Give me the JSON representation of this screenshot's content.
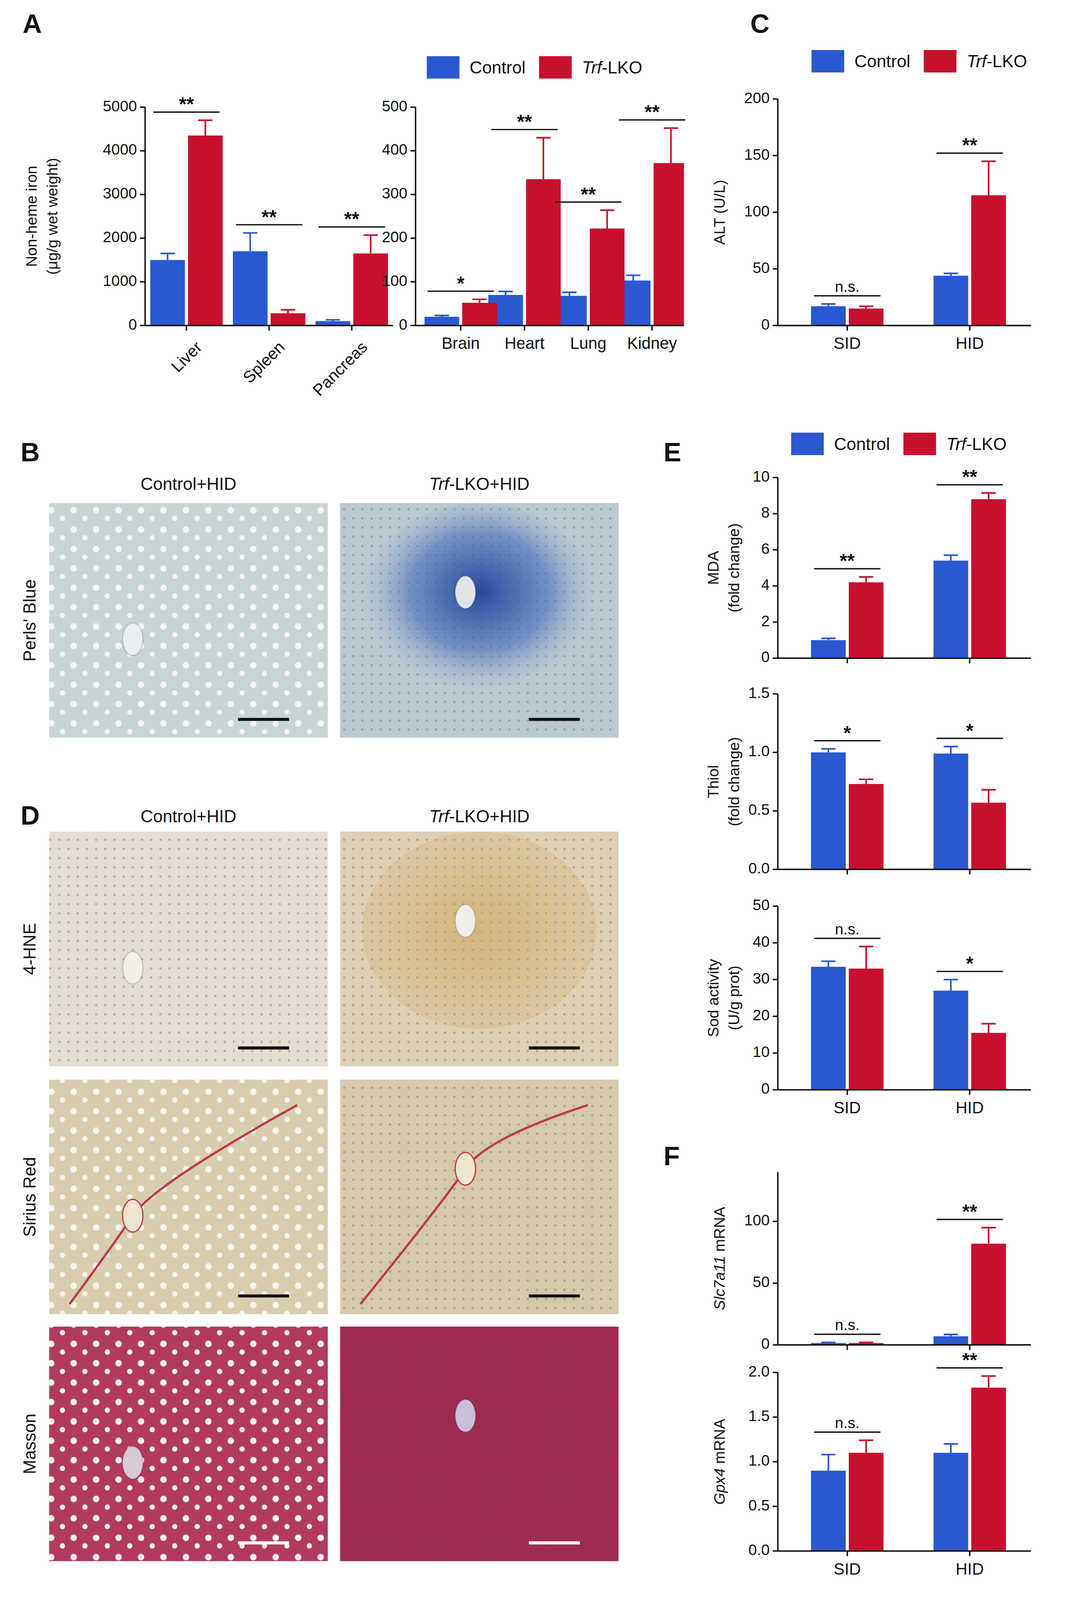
{
  "panel_labels": [
    "A",
    "C",
    "E",
    "F"
  ],
  "images": [
    {
      "panel": "B",
      "columns": [
        "Control+HID",
        "Trf-LKO+HID"
      ],
      "rows": [
        "Perls' Blue"
      ]
    },
    {
      "panel": "D",
      "columns": [
        "Control+HID",
        "Trf-LKO+HID"
      ],
      "rows": [
        "4-HNE",
        "Sirius Red",
        "Masson"
      ]
    }
  ],
  "chart_data": [
    {
      "type": "bar",
      "categories": [
        "Liver",
        "Spleen",
        "Pancreas"
      ],
      "series": [
        {
          "name": "Control",
          "color": "#2a58d0",
          "values": [
            1500,
            1700,
            100
          ],
          "errors": [
            150,
            420,
            30
          ]
        },
        {
          "name": "Trf-LKO",
          "color": "#c8102e",
          "values": [
            4350,
            280,
            1650
          ],
          "errors": [
            350,
            80,
            420
          ]
        }
      ],
      "ylim": [
        0,
        5000
      ],
      "yticks": [
        0,
        1000,
        2000,
        3000,
        4000,
        5000
      ],
      "y_label": [
        "Non-heme iron",
        "(μg/g wet weight)"
      ],
      "annotations": [
        "**",
        "**",
        "**"
      ]
    },
    {
      "type": "bar",
      "categories": [
        "Brain",
        "Heart",
        "Lung",
        "Kidney"
      ],
      "series": [
        {
          "name": "Control",
          "color": "#2a58d0",
          "values": [
            20,
            70,
            68,
            103
          ],
          "errors": [
            3,
            8,
            8,
            12
          ]
        },
        {
          "name": "Trf-LKO",
          "color": "#c8102e",
          "values": [
            52,
            335,
            222,
            372
          ],
          "errors": [
            8,
            95,
            42,
            80
          ]
        }
      ],
      "ylim": [
        0,
        500
      ],
      "yticks": [
        0,
        100,
        200,
        300,
        400,
        500
      ],
      "annotations": [
        "*",
        "**",
        "**",
        "**"
      ],
      "legend": "top"
    },
    {
      "type": "bar",
      "categories": [
        "SID",
        "HID"
      ],
      "series": [
        {
          "name": "Control",
          "color": "#2a58d0",
          "values": [
            17,
            44
          ],
          "errors": [
            2,
            2
          ]
        },
        {
          "name": "Trf-LKO",
          "color": "#c8102e",
          "values": [
            15,
            115
          ],
          "errors": [
            2,
            30
          ]
        }
      ],
      "ylim": [
        0,
        200
      ],
      "yticks": [
        0,
        50,
        100,
        150,
        200
      ],
      "y_label": [
        "ALT (U/L)"
      ],
      "annotations": [
        "n.s.",
        "**"
      ],
      "legend": "top"
    },
    {
      "type": "bar",
      "categories": [
        "SID",
        "HID"
      ],
      "series": [
        {
          "name": "Control",
          "color": "#2a58d0",
          "values": [
            1.0,
            5.4
          ],
          "errors": [
            0.1,
            0.3
          ]
        },
        {
          "name": "Trf-LKO",
          "color": "#c8102e",
          "values": [
            4.2,
            8.8
          ],
          "errors": [
            0.3,
            0.35
          ]
        }
      ],
      "ylim": [
        0,
        10
      ],
      "yticks": [
        0,
        2,
        4,
        6,
        8,
        10
      ],
      "y_label": [
        "MDA",
        "(fold change)"
      ],
      "annotations": [
        "**",
        "**"
      ],
      "legend": "top",
      "tick_labels": "y"
    },
    {
      "type": "bar",
      "categories": [
        "SID",
        "HID"
      ],
      "series": [
        {
          "name": "Control",
          "color": "#2a58d0",
          "values": [
            1.0,
            0.99
          ],
          "errors": [
            0.03,
            0.06
          ]
        },
        {
          "name": "Trf-LKO",
          "color": "#c8102e",
          "values": [
            0.73,
            0.57
          ],
          "errors": [
            0.04,
            0.11
          ]
        }
      ],
      "ylim": [
        0,
        1.5
      ],
      "yticks": [
        {
          "value": 0,
          "label": "0.0"
        },
        {
          "value": 0.5,
          "label": "0.5"
        },
        {
          "value": 1,
          "label": "1.0"
        },
        {
          "value": 1.5,
          "label": "1.5"
        }
      ],
      "y_label": [
        "Thiol",
        "(fold change)"
      ],
      "annotations": [
        "*",
        "*"
      ],
      "tick_labels": "y"
    },
    {
      "type": "bar",
      "categories": [
        "SID",
        "HID"
      ],
      "series": [
        {
          "name": "Control",
          "color": "#2a58d0",
          "values": [
            33.5,
            27
          ],
          "errors": [
            1.5,
            3
          ]
        },
        {
          "name": "Trf-LKO",
          "color": "#c8102e",
          "values": [
            33,
            15.5
          ],
          "errors": [
            6,
            2.5
          ]
        }
      ],
      "ylim": [
        0,
        50
      ],
      "yticks": [
        0,
        10,
        20,
        30,
        40,
        50
      ],
      "y_label": [
        "Sod activity",
        "(U/g prot)"
      ],
      "annotations": [
        "n.s.",
        "*"
      ]
    },
    {
      "type": "bar",
      "categories": [
        "SID",
        "HID"
      ],
      "series": [
        {
          "name": "Control",
          "color": "#2a58d0",
          "values": [
            1.5,
            7
          ],
          "errors": [
            0.5,
            1.5
          ]
        },
        {
          "name": "Trf-LKO",
          "color": "#c8102e",
          "values": [
            1.5,
            82
          ],
          "errors": [
            0.5,
            13
          ]
        }
      ],
      "ylim": [
        0,
        140
      ],
      "yticks": [
        0,
        50,
        100
      ],
      "y_label": [
        "Slc7a11 mRNA"
      ],
      "annotations": [
        "n.s.",
        "**"
      ],
      "tick_labels": "y"
    },
    {
      "type": "bar",
      "categories": [
        "SID",
        "HID"
      ],
      "series": [
        {
          "name": "Control",
          "color": "#2a58d0",
          "values": [
            0.9,
            1.1
          ],
          "errors": [
            0.18,
            0.1
          ]
        },
        {
          "name": "Trf-LKO",
          "color": "#c8102e",
          "values": [
            1.1,
            1.83
          ],
          "errors": [
            0.14,
            0.13
          ]
        }
      ],
      "ylim": [
        0,
        2
      ],
      "yticks": [
        {
          "value": 0,
          "label": "0.0"
        },
        {
          "value": 0.5,
          "label": "0.5"
        },
        {
          "value": 1,
          "label": "1.0"
        },
        {
          "value": 1.5,
          "label": "1.5"
        },
        {
          "value": 2,
          "label": "2.0"
        }
      ],
      "y_label": [
        "Gpx4 mRNA"
      ],
      "annotations": [
        "n.s.",
        "**"
      ]
    }
  ]
}
